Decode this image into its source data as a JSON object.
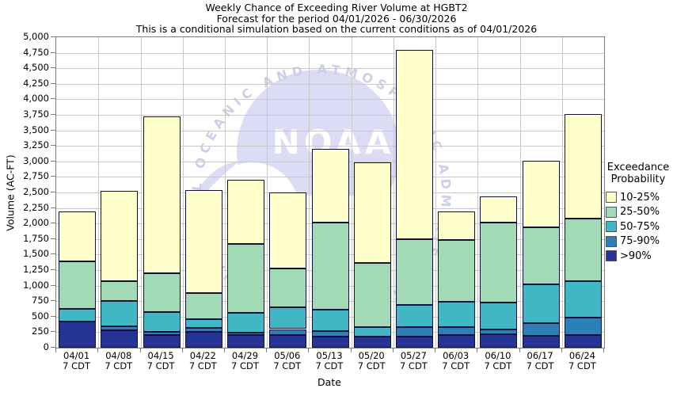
{
  "title": {
    "line1": "Weekly Chance of Exceeding River Volume at HGBT2",
    "line2": "Forecast for the period 04/01/2026 - 06/30/2026",
    "line3": "This is a conditional simulation based on the current conditions as of 04/01/2026"
  },
  "y_axis": {
    "title": "Volume (AC-FT)",
    "min": 0,
    "max": 5000,
    "tick_step": 250
  },
  "x_axis": {
    "title": "Date",
    "tick_sublabel": "7 CDT"
  },
  "legend": {
    "title_line1": "Exceedance",
    "title_line2": "Probability",
    "items": [
      {
        "label": "10-25%",
        "color": "#ffffcc"
      },
      {
        "label": "25-50%",
        "color": "#a1dab4"
      },
      {
        "label": "50-75%",
        "color": "#41b6c4"
      },
      {
        "label": "75-90%",
        "color": "#2c7fb8"
      },
      {
        "label": ">90%",
        "color": "#253494"
      }
    ]
  },
  "watermark": {
    "ring_text": "NATIONAL OCEANIC AND ATMOSPHERIC ADMINISTRATION",
    "logo_text": "NOAA"
  },
  "chart_data": {
    "type": "bar",
    "stacked": true,
    "title": "Weekly Chance of Exceeding River Volume at HGBT2",
    "xlabel": "Date",
    "ylabel": "Volume (AC-FT)",
    "ylim": [
      0,
      5000
    ],
    "grid": true,
    "legend_position": "right",
    "categories": [
      "04/01",
      "04/08",
      "04/15",
      "04/22",
      "04/29",
      "05/06",
      "05/13",
      "05/20",
      "05/27",
      "06/03",
      "06/10",
      "06/17",
      "06/24"
    ],
    "series": [
      {
        "name": ">90%",
        "color": "#253494",
        "cumulative_tops": [
          425,
          280,
          200,
          260,
          210,
          210,
          175,
          175,
          175,
          210,
          220,
          195,
          210
        ]
      },
      {
        "name": "75-90%",
        "color": "#2c7fb8",
        "cumulative_tops": [
          425,
          340,
          250,
          325,
          240,
          300,
          270,
          175,
          335,
          335,
          295,
          400,
          485
        ]
      },
      {
        "name": "50-75%",
        "color": "#41b6c4",
        "cumulative_tops": [
          620,
          750,
          575,
          460,
          560,
          650,
          610,
          330,
          690,
          740,
          730,
          1015,
          1070
        ]
      },
      {
        "name": "25-50%",
        "color": "#a1dab4",
        "cumulative_tops": [
          1385,
          1070,
          1200,
          875,
          1675,
          1270,
          2020,
          1360,
          1750,
          1740,
          2020,
          1945,
          2085
        ]
      },
      {
        "name": "10-25%",
        "color": "#ffffcc",
        "cumulative_tops": [
          2200,
          2520,
          3720,
          2540,
          2700,
          2500,
          3200,
          2990,
          4790,
          2190,
          2440,
          3010,
          3760
        ]
      }
    ]
  }
}
